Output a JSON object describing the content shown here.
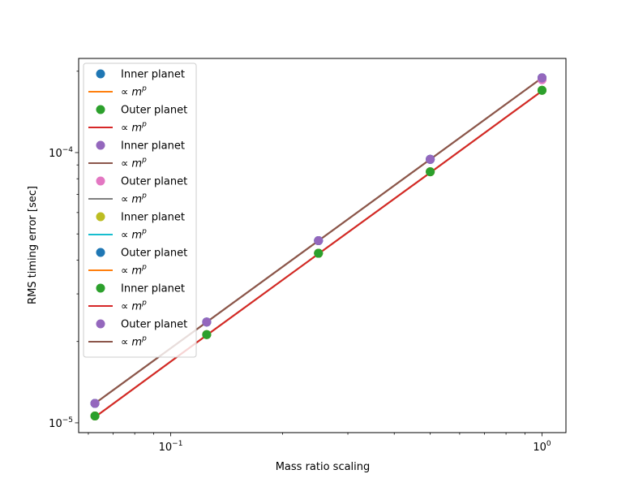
{
  "chart_data": {
    "type": "scatter",
    "title": "",
    "xlabel": "Mass ratio scaling",
    "ylabel": "RMS timing error [sec]",
    "xscale": "log",
    "yscale": "log",
    "xlim": [
      0.0565,
      1.16
    ],
    "ylim": [
      9.2e-06,
      0.000223
    ],
    "grid": false,
    "legend_position": "top-left",
    "x_ticks": [
      {
        "value": 0.1,
        "base": "10",
        "exp": "−1"
      },
      {
        "value": 1,
        "base": "10",
        "exp": "0"
      }
    ],
    "y_ticks": [
      {
        "value": 1e-05,
        "base": "10",
        "exp": "−5"
      },
      {
        "value": 0.0001,
        "base": "10",
        "exp": "−4"
      }
    ],
    "x": [
      0.0625,
      0.125,
      0.25,
      0.5,
      1.0
    ],
    "series": [
      {
        "name": "Inner planet",
        "kind": "points",
        "color": "#1f77b4",
        "values": [
          1.18e-05,
          2.36e-05,
          4.72e-05,
          9.44e-05,
          0.000189
        ]
      },
      {
        "name": "∝ m^p",
        "kind": "line",
        "color": "#ff7f0e",
        "values": [
          1.18e-05,
          2.36e-05,
          4.72e-05,
          9.44e-05,
          0.000189
        ]
      },
      {
        "name": "Outer planet",
        "kind": "points",
        "color": "#2ca02c",
        "values": [
          1.06e-05,
          2.12e-05,
          4.24e-05,
          8.49e-05,
          0.00017
        ]
      },
      {
        "name": "∝ m^p",
        "kind": "line",
        "color": "#d62728",
        "values": [
          1.05e-05,
          2.11e-05,
          4.22e-05,
          8.43e-05,
          0.000169
        ]
      },
      {
        "name": "Inner planet",
        "kind": "points",
        "color": "#9467bd",
        "values": [
          1.18e-05,
          2.36e-05,
          4.72e-05,
          9.44e-05,
          0.000189
        ]
      },
      {
        "name": "∝ m^p",
        "kind": "line",
        "color": "#8c564b",
        "values": [
          1.18e-05,
          2.36e-05,
          4.72e-05,
          9.44e-05,
          0.000189
        ]
      },
      {
        "name": "Outer planet",
        "kind": "points",
        "color": "#e377c2",
        "values": [
          1.06e-05,
          2.12e-05,
          4.24e-05,
          8.49e-05,
          0.000186
        ]
      },
      {
        "name": "∝ m^p",
        "kind": "line",
        "color": "#7f7f7f",
        "values": [
          1.18e-05,
          2.36e-05,
          4.72e-05,
          9.44e-05,
          0.000189
        ]
      },
      {
        "name": "Inner planet",
        "kind": "points",
        "color": "#bcbd22",
        "values": [
          1.06e-05,
          2.12e-05,
          4.24e-05,
          8.49e-05,
          0.00017
        ]
      },
      {
        "name": "∝ m^p",
        "kind": "line",
        "color": "#17becf",
        "values": [
          1.05e-05,
          2.11e-05,
          4.22e-05,
          8.43e-05,
          0.000169
        ]
      },
      {
        "name": "Outer planet",
        "kind": "points",
        "color": "#1f77b4",
        "values": [
          1.18e-05,
          2.36e-05,
          4.72e-05,
          9.44e-05,
          0.000189
        ]
      },
      {
        "name": "∝ m^p",
        "kind": "line",
        "color": "#ff7f0e",
        "values": [
          1.05e-05,
          2.11e-05,
          4.22e-05,
          8.43e-05,
          0.000169
        ]
      },
      {
        "name": "Inner planet",
        "kind": "points",
        "color": "#2ca02c",
        "values": [
          1.06e-05,
          2.12e-05,
          4.24e-05,
          8.49e-05,
          0.00017
        ]
      },
      {
        "name": "∝ m^p",
        "kind": "line",
        "color": "#d62728",
        "values": [
          1.05e-05,
          2.11e-05,
          4.22e-05,
          8.43e-05,
          0.000169
        ]
      },
      {
        "name": "Outer planet",
        "kind": "points",
        "color": "#9467bd",
        "values": [
          1.18e-05,
          2.36e-05,
          4.72e-05,
          9.44e-05,
          0.000189
        ]
      },
      {
        "name": "∝ m^p",
        "kind": "line",
        "color": "#8c564b",
        "values": [
          1.18e-05,
          2.36e-05,
          4.72e-05,
          9.44e-05,
          0.000189
        ]
      }
    ]
  }
}
